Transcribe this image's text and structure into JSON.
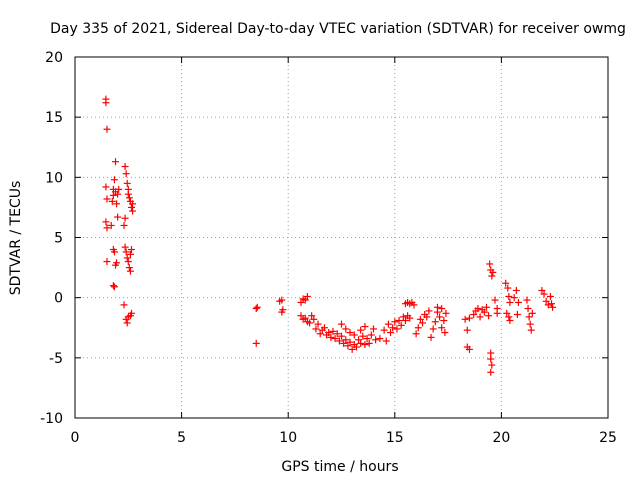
{
  "chart_data": {
    "type": "scatter",
    "title": "Day 335 of 2021, Sidereal Day-to-day VTEC variation (SDTVAR) for receiver owmg",
    "xlabel": "GPS time / hours",
    "ylabel": "SDTVAR / TECUs",
    "xlim": [
      0,
      25
    ],
    "ylim": [
      -10,
      20
    ],
    "xticks": [
      0,
      5,
      10,
      15,
      20,
      25
    ],
    "yticks": [
      -10,
      -5,
      0,
      5,
      10,
      15,
      20
    ],
    "grid": true,
    "marker": "+",
    "series": [
      {
        "name": "SDTVAR",
        "color": "#ff0000",
        "points": [
          [
            1.45,
            16.5
          ],
          [
            1.45,
            16.2
          ],
          [
            1.5,
            14.0
          ],
          [
            1.45,
            9.2
          ],
          [
            1.5,
            8.2
          ],
          [
            1.45,
            6.3
          ],
          [
            1.5,
            5.8
          ],
          [
            1.5,
            3.0
          ],
          [
            1.7,
            6.0
          ],
          [
            1.75,
            8.0
          ],
          [
            1.8,
            8.5
          ],
          [
            1.8,
            9.0
          ],
          [
            1.85,
            9.8
          ],
          [
            1.9,
            11.3
          ],
          [
            1.9,
            8.8
          ],
          [
            1.95,
            7.8
          ],
          [
            1.8,
            4.0
          ],
          [
            1.85,
            3.8
          ],
          [
            1.9,
            2.7
          ],
          [
            1.95,
            2.9
          ],
          [
            1.8,
            1.0
          ],
          [
            1.85,
            0.9
          ],
          [
            2.0,
            6.7
          ],
          [
            2.0,
            8.6
          ],
          [
            2.05,
            9.0
          ],
          [
            2.35,
            10.9
          ],
          [
            2.4,
            10.3
          ],
          [
            2.45,
            9.5
          ],
          [
            2.5,
            9.0
          ],
          [
            2.5,
            8.6
          ],
          [
            2.55,
            8.3
          ],
          [
            2.6,
            8.0
          ],
          [
            2.65,
            7.5
          ],
          [
            2.7,
            7.2
          ],
          [
            2.7,
            7.8
          ],
          [
            2.3,
            6.0
          ],
          [
            2.35,
            6.6
          ],
          [
            2.35,
            4.2
          ],
          [
            2.4,
            3.8
          ],
          [
            2.45,
            3.3
          ],
          [
            2.5,
            3.0
          ],
          [
            2.55,
            2.5
          ],
          [
            2.6,
            3.6
          ],
          [
            2.6,
            2.2
          ],
          [
            2.65,
            4.0
          ],
          [
            2.3,
            -0.6
          ],
          [
            2.4,
            -1.8
          ],
          [
            2.45,
            -2.1
          ],
          [
            2.5,
            -1.6
          ],
          [
            2.6,
            -1.5
          ],
          [
            2.65,
            -1.3
          ],
          [
            8.5,
            -0.9
          ],
          [
            8.55,
            -0.8
          ],
          [
            8.5,
            -3.8
          ],
          [
            9.6,
            -0.3
          ],
          [
            9.7,
            -0.2
          ],
          [
            9.75,
            -1.0
          ],
          [
            9.7,
            -1.2
          ],
          [
            10.6,
            -0.4
          ],
          [
            10.7,
            -0.1
          ],
          [
            10.8,
            -0.2
          ],
          [
            10.9,
            0.1
          ],
          [
            10.6,
            -1.5
          ],
          [
            10.7,
            -1.8
          ],
          [
            10.8,
            -1.7
          ],
          [
            10.9,
            -2.0
          ],
          [
            11.0,
            -2.1
          ],
          [
            11.1,
            -1.5
          ],
          [
            11.2,
            -1.8
          ],
          [
            11.3,
            -2.6
          ],
          [
            11.4,
            -2.2
          ],
          [
            11.5,
            -3.0
          ],
          [
            11.6,
            -2.7
          ],
          [
            11.7,
            -2.5
          ],
          [
            11.8,
            -3.1
          ],
          [
            11.9,
            -2.9
          ],
          [
            12.0,
            -3.3
          ],
          [
            12.1,
            -2.8
          ],
          [
            12.2,
            -3.4
          ],
          [
            12.3,
            -3.0
          ],
          [
            12.4,
            -3.6
          ],
          [
            12.5,
            -3.2
          ],
          [
            12.6,
            -3.8
          ],
          [
            12.7,
            -3.5
          ],
          [
            12.8,
            -4.0
          ],
          [
            12.9,
            -3.7
          ],
          [
            13.0,
            -4.3
          ],
          [
            13.1,
            -3.9
          ],
          [
            13.2,
            -4.1
          ],
          [
            13.3,
            -3.5
          ],
          [
            13.4,
            -3.8
          ],
          [
            13.5,
            -3.2
          ],
          [
            13.6,
            -3.9
          ],
          [
            13.7,
            -3.4
          ],
          [
            13.8,
            -3.8
          ],
          [
            13.9,
            -3.1
          ],
          [
            14.0,
            -2.6
          ],
          [
            14.1,
            -3.5
          ],
          [
            12.5,
            -2.2
          ],
          [
            12.7,
            -2.6
          ],
          [
            12.9,
            -2.9
          ],
          [
            13.1,
            -3.1
          ],
          [
            13.4,
            -2.7
          ],
          [
            13.6,
            -2.4
          ],
          [
            14.3,
            -3.4
          ],
          [
            14.5,
            -2.7
          ],
          [
            14.6,
            -3.6
          ],
          [
            14.7,
            -2.2
          ],
          [
            14.8,
            -2.9
          ],
          [
            14.9,
            -2.5
          ],
          [
            15.0,
            -2.0
          ],
          [
            15.1,
            -2.6
          ],
          [
            15.2,
            -1.9
          ],
          [
            15.3,
            -2.3
          ],
          [
            15.4,
            -1.6
          ],
          [
            15.5,
            -1.9
          ],
          [
            15.6,
            -1.5
          ],
          [
            15.7,
            -1.7
          ],
          [
            15.5,
            -0.5
          ],
          [
            15.6,
            -0.4
          ],
          [
            15.7,
            -0.5
          ],
          [
            15.8,
            -0.4
          ],
          [
            15.9,
            -0.6
          ],
          [
            16.0,
            -3.0
          ],
          [
            16.1,
            -2.5
          ],
          [
            16.2,
            -1.8
          ],
          [
            16.3,
            -2.1
          ],
          [
            16.4,
            -1.4
          ],
          [
            16.5,
            -1.6
          ],
          [
            16.6,
            -1.1
          ],
          [
            16.7,
            -3.3
          ],
          [
            16.8,
            -2.6
          ],
          [
            16.9,
            -2.0
          ],
          [
            17.0,
            -1.2
          ],
          [
            17.1,
            -1.6
          ],
          [
            17.2,
            -2.5
          ],
          [
            17.3,
            -1.9
          ],
          [
            17.35,
            -2.9
          ],
          [
            17.4,
            -1.3
          ],
          [
            17.0,
            -0.8
          ],
          [
            17.2,
            -0.9
          ],
          [
            18.3,
            -1.8
          ],
          [
            18.4,
            -2.7
          ],
          [
            18.5,
            -1.7
          ],
          [
            18.4,
            -4.1
          ],
          [
            18.5,
            -4.3
          ],
          [
            18.7,
            -1.4
          ],
          [
            18.8,
            -1.1
          ],
          [
            18.9,
            -0.9
          ],
          [
            19.0,
            -1.6
          ],
          [
            19.1,
            -1.0
          ],
          [
            19.2,
            -1.2
          ],
          [
            19.3,
            -0.8
          ],
          [
            19.4,
            -1.5
          ],
          [
            19.45,
            2.8
          ],
          [
            19.5,
            2.3
          ],
          [
            19.55,
            1.8
          ],
          [
            19.6,
            2.1
          ],
          [
            19.5,
            -4.6
          ],
          [
            19.5,
            -5.1
          ],
          [
            19.55,
            -5.6
          ],
          [
            19.5,
            -6.2
          ],
          [
            19.7,
            -0.2
          ],
          [
            19.8,
            -0.9
          ],
          [
            19.8,
            -1.3
          ],
          [
            20.2,
            1.2
          ],
          [
            20.3,
            0.8
          ],
          [
            20.35,
            0.1
          ],
          [
            20.4,
            -0.4
          ],
          [
            20.25,
            -1.3
          ],
          [
            20.35,
            -1.6
          ],
          [
            20.4,
            -1.9
          ],
          [
            20.6,
            0.0
          ],
          [
            20.7,
            0.6
          ],
          [
            20.8,
            -0.4
          ],
          [
            20.75,
            -1.4
          ],
          [
            21.2,
            -0.2
          ],
          [
            21.25,
            -0.9
          ],
          [
            21.3,
            -1.6
          ],
          [
            21.35,
            -2.2
          ],
          [
            21.4,
            -2.7
          ],
          [
            21.45,
            -1.3
          ],
          [
            21.9,
            0.6
          ],
          [
            22.0,
            0.3
          ],
          [
            22.1,
            -0.3
          ],
          [
            22.2,
            -0.6
          ],
          [
            22.3,
            0.1
          ],
          [
            22.4,
            -0.8
          ],
          [
            22.35,
            -0.5
          ]
        ]
      }
    ]
  }
}
